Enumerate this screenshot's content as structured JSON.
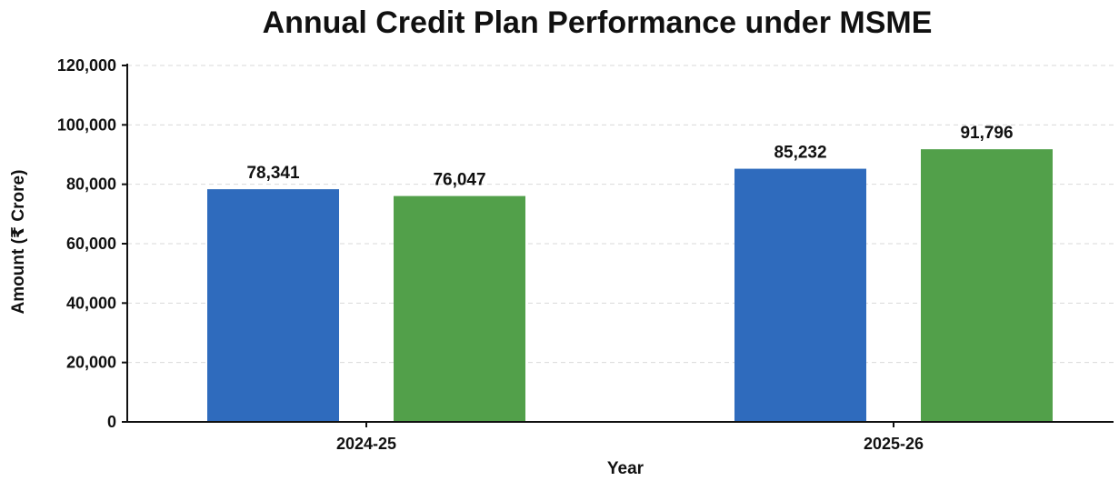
{
  "chart_data": {
    "type": "bar",
    "title": "Annual Credit Plan Performance under MSME",
    "xlabel": "Year",
    "ylabel": "Amount (₹ Crore)",
    "categories": [
      "2024-25",
      "2025-26"
    ],
    "series": [
      {
        "values": [
          78341,
          85232
        ],
        "labels": [
          "78,341",
          "85,232"
        ],
        "color": "#2f6bbd"
      },
      {
        "values": [
          76047,
          91796
        ],
        "labels": [
          "76,047",
          "91,796"
        ],
        "color": "#52a04a"
      }
    ],
    "ylim": [
      0,
      120000
    ],
    "yticks": [
      0,
      20000,
      40000,
      60000,
      80000,
      100000,
      120000
    ],
    "ytick_labels": [
      "0",
      "20,000",
      "40,000",
      "60,000",
      "80,000",
      "100,000",
      "120,000"
    ],
    "grid": true,
    "legend": "none"
  }
}
